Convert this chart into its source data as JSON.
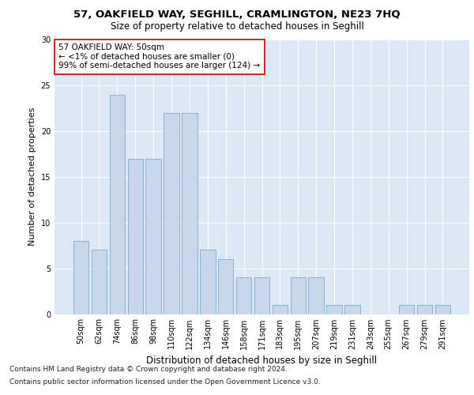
{
  "title_line1": "57, OAKFIELD WAY, SEGHILL, CRAMLINGTON, NE23 7HQ",
  "title_line2": "Size of property relative to detached houses in Seghill",
  "xlabel": "Distribution of detached houses by size in Seghill",
  "ylabel": "Number of detached properties",
  "categories": [
    "50sqm",
    "62sqm",
    "74sqm",
    "86sqm",
    "98sqm",
    "110sqm",
    "122sqm",
    "134sqm",
    "146sqm",
    "158sqm",
    "171sqm",
    "183sqm",
    "195sqm",
    "207sqm",
    "219sqm",
    "231sqm",
    "243sqm",
    "255sqm",
    "267sqm",
    "279sqm",
    "291sqm"
  ],
  "values": [
    8,
    7,
    24,
    17,
    17,
    22,
    22,
    7,
    6,
    4,
    4,
    1,
    4,
    4,
    1,
    1,
    0,
    0,
    1,
    1,
    1
  ],
  "bar_color": "#c8d8ea",
  "bar_edgecolor": "#7aaccc",
  "ylim": [
    0,
    30
  ],
  "yticks": [
    0,
    5,
    10,
    15,
    20,
    25,
    30
  ],
  "annotation_title": "57 OAKFIELD WAY: 50sqm",
  "annotation_line2": "← <1% of detached houses are smaller (0)",
  "annotation_line3": "99% of semi-detached houses are larger (124) →",
  "annotation_box_facecolor": "#ffffff",
  "annotation_box_edgecolor": "#cc0000",
  "footer_line1": "Contains HM Land Registry data © Crown copyright and database right 2024.",
  "footer_line2": "Contains public sector information licensed under the Open Government Licence v3.0.",
  "fig_facecolor": "#ffffff",
  "axes_facecolor": "#dce8f5",
  "grid_color": "#ffffff",
  "title_fontsize": 9.5,
  "subtitle_fontsize": 8.5,
  "ylabel_fontsize": 8,
  "xlabel_fontsize": 8.5,
  "tick_fontsize": 7,
  "annotation_fontsize": 7.5,
  "footer_fontsize": 6.5
}
